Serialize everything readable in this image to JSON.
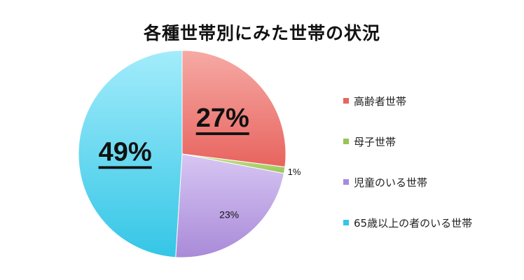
{
  "chart_data": {
    "type": "pie",
    "title": "各種世帯別にみた世帯の状況",
    "legend_position": "right",
    "slices": [
      {
        "label": "高齢者世帯",
        "value": 27,
        "display": "27%",
        "color": "#e8645f",
        "color_light": "#f6aaa5"
      },
      {
        "label": "母子世帯",
        "value": 1,
        "display": "1%",
        "color": "#98c455",
        "color_light": "#c9e594"
      },
      {
        "label": "児童のいる世帯",
        "value": 23,
        "display": "23%",
        "color": "#a98ad8",
        "color_light": "#d7c6f3"
      },
      {
        "label": "65歳以上の者のいる世帯",
        "value": 49,
        "display": "49%",
        "color": "#34c6e6",
        "color_light": "#a3ecfb"
      }
    ]
  }
}
